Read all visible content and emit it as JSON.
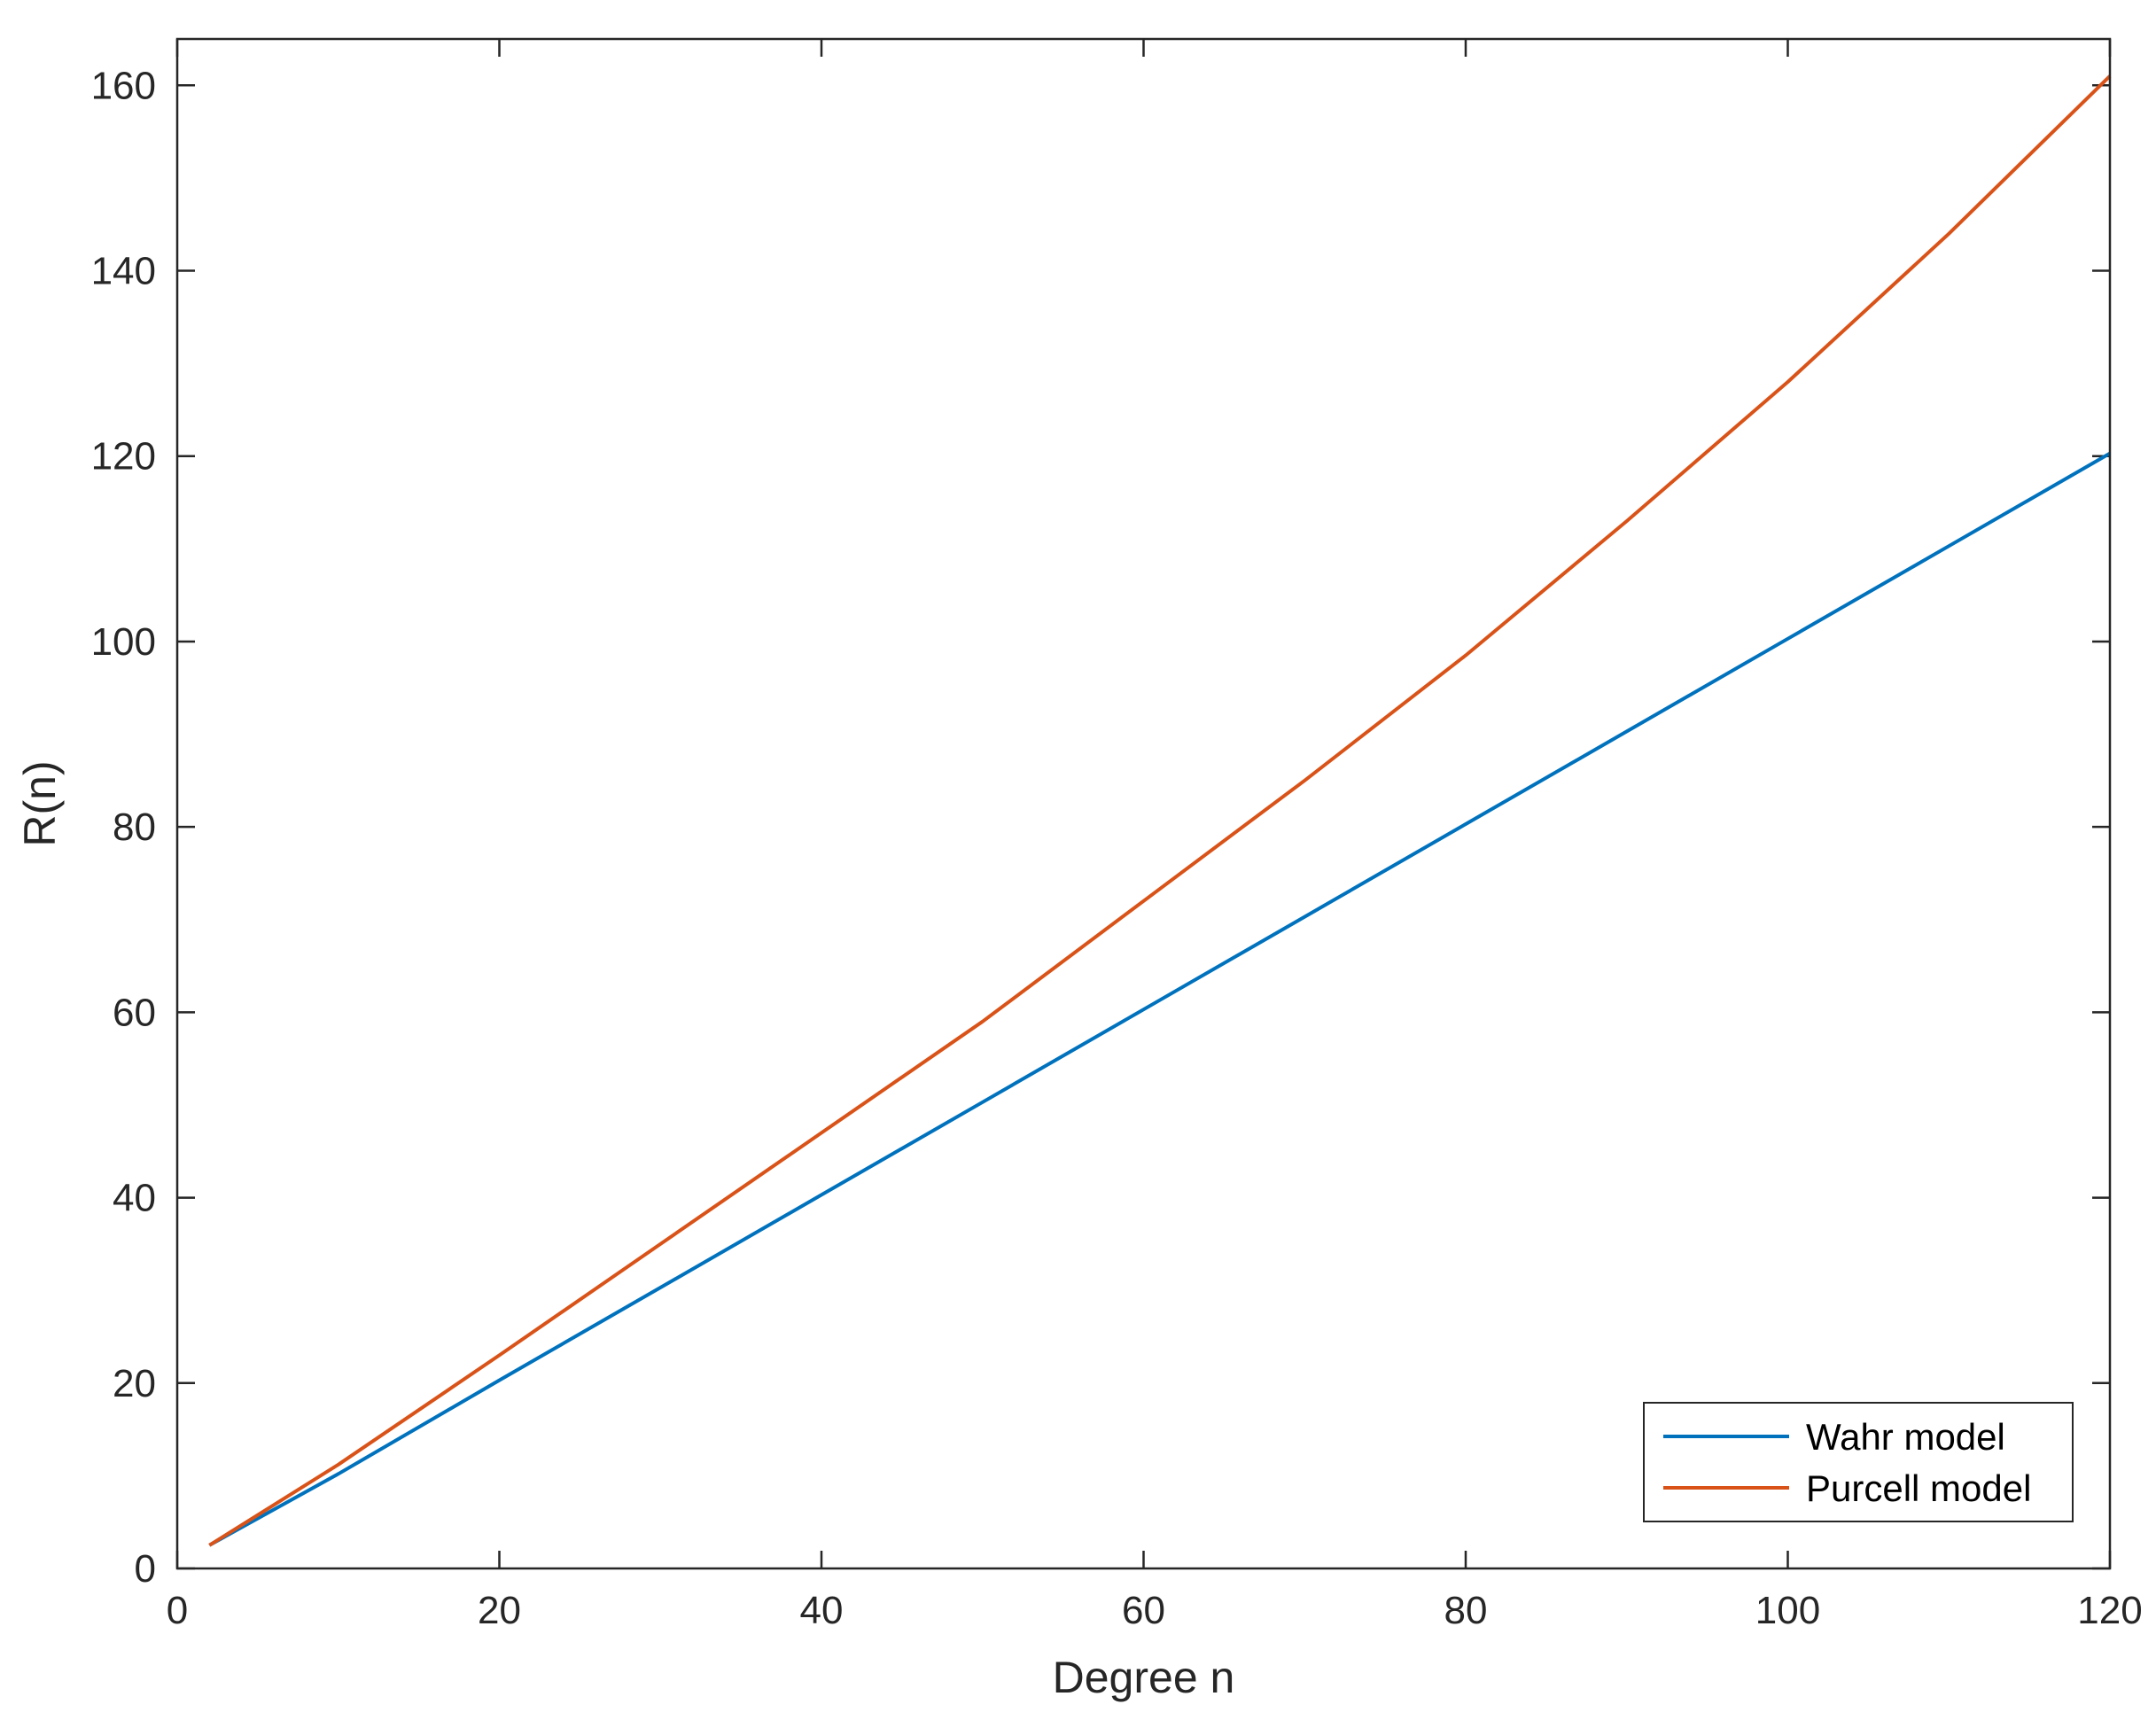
{
  "chart_data": {
    "type": "line",
    "xlabel": "Degree n",
    "ylabel": "R(n)",
    "xlim": [
      0,
      120
    ],
    "ylim": [
      0,
      165
    ],
    "xticks": [
      0,
      20,
      40,
      60,
      80,
      100,
      120
    ],
    "yticks": [
      0,
      20,
      40,
      60,
      80,
      100,
      120,
      140,
      160
    ],
    "grid": false,
    "legend_position": "bottom-right",
    "x": [
      2,
      10,
      20,
      30,
      40,
      50,
      60,
      70,
      80,
      90,
      100,
      110,
      120
    ],
    "series": [
      {
        "name": "Wahr model",
        "color": "#0072BD",
        "values": [
          2.5,
          10.2,
          20.3,
          30.3,
          40.3,
          50.3,
          60.3,
          70.3,
          80.3,
          90.3,
          100.3,
          110.3,
          120.3
        ]
      },
      {
        "name": "Purcell model",
        "color": "#D95319",
        "values": [
          2.5,
          11.2,
          23.0,
          35.0,
          47.0,
          59.0,
          72.0,
          85.0,
          98.5,
          113.0,
          128.0,
          144.0,
          161.0
        ]
      }
    ]
  }
}
